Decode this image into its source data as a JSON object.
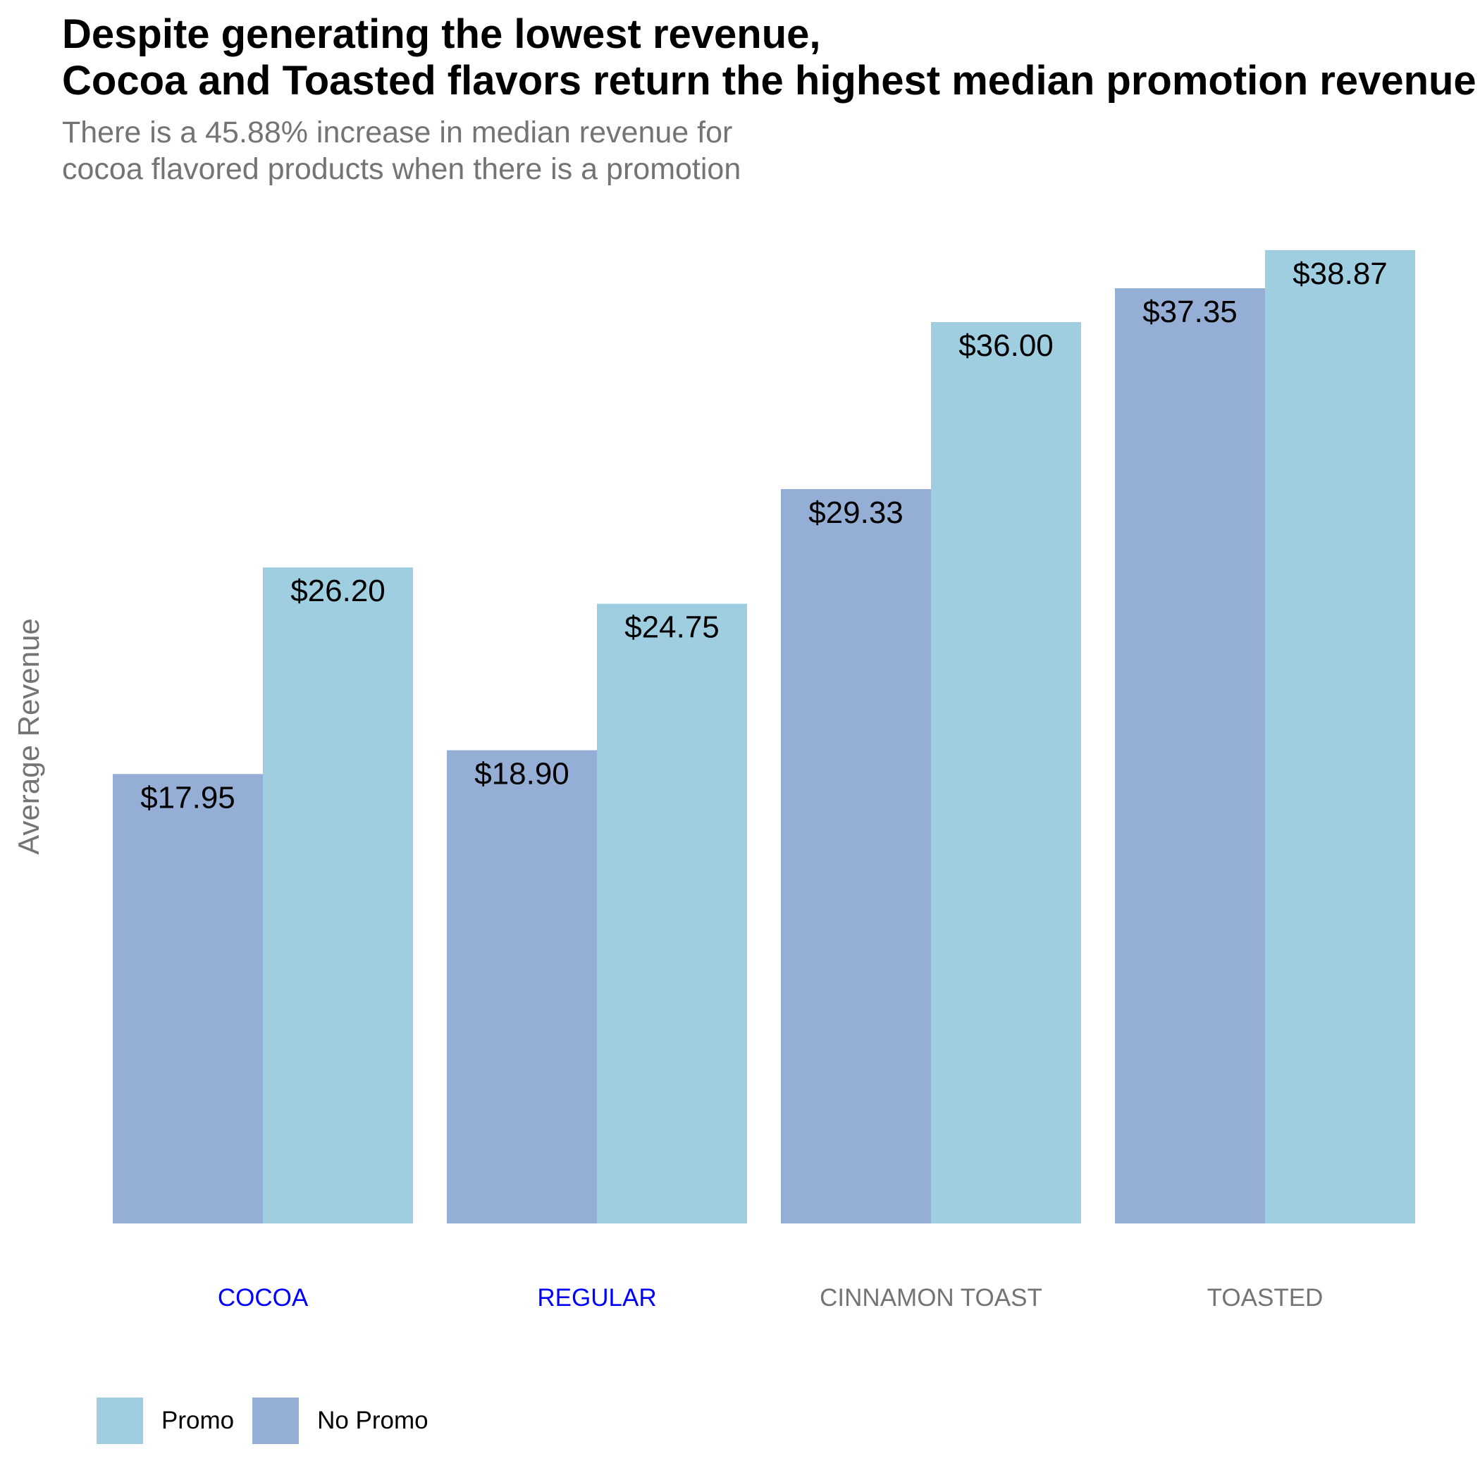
{
  "title_lines": [
    "Despite generating the lowest revenue,",
    "Cocoa and Toasted flavors return the highest median promotion revenue"
  ],
  "subtitle_lines": [
    "There is a 45.88% increase in median revenue for",
    "cocoa flavored products when there is a promotion"
  ],
  "colors": {
    "promo": "#9fcee0",
    "no_promo": "#95aed5",
    "highlight_label": "#0000ff",
    "muted_label": "#747474"
  },
  "legend": [
    {
      "key": "promo",
      "label": "Promo"
    },
    {
      "key": "no_promo",
      "label": "No Promo"
    }
  ],
  "chart_data": {
    "type": "bar",
    "title": "Despite generating the lowest revenue, Cocoa and Toasted flavors return the highest median promotion revenue",
    "subtitle": "There is a 45.88% increase in median revenue for cocoa flavored products when there is a promotion",
    "xlabel": "",
    "ylabel": "Average Revenue",
    "categories": [
      "COCOA",
      "REGULAR",
      "CINNAMON TOAST",
      "TOASTED"
    ],
    "category_highlight": [
      true,
      true,
      false,
      false
    ],
    "series": [
      {
        "name": "No Promo",
        "key": "no_promo",
        "values": [
          17.95,
          18.9,
          29.33,
          37.35
        ],
        "labels": [
          "$17.95",
          "$18.90",
          "$29.33",
          "$37.35"
        ]
      },
      {
        "name": "Promo",
        "key": "promo",
        "values": [
          26.2,
          24.75,
          36.0,
          38.87
        ],
        "labels": [
          "$26.20",
          "$24.75",
          "$36.00",
          "$38.87"
        ]
      }
    ],
    "ylim": [
      0,
      38.87
    ],
    "grid": false,
    "y_ticks_shown": false,
    "legend_position": "bottom-left"
  }
}
